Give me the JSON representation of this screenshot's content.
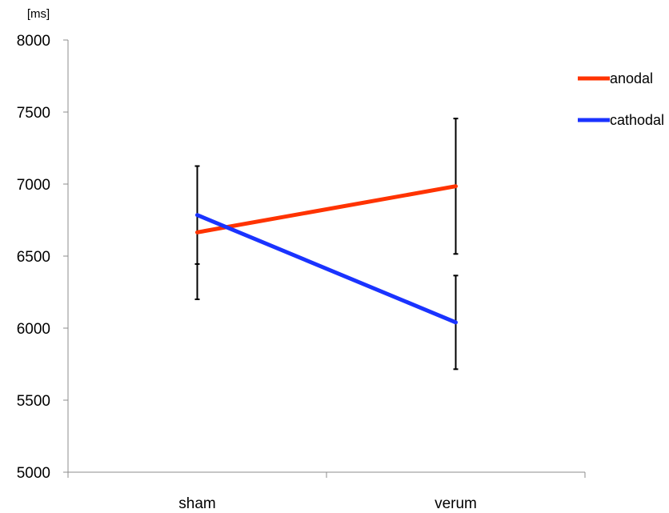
{
  "chart_data": {
    "type": "line",
    "title": "",
    "ylabel": "[ms]",
    "xlabel": "",
    "categories": [
      "sham",
      "verum"
    ],
    "ylim": [
      5000,
      8000
    ],
    "yticks": [
      5000,
      5500,
      6000,
      6500,
      7000,
      7500,
      8000
    ],
    "grid": false,
    "legend_position": "top-right",
    "series": [
      {
        "name": "anodal",
        "color": "#ff3300",
        "values": [
          6665,
          6985
        ],
        "error_low": [
          6200,
          6515
        ],
        "error_high": [
          7125,
          7455
        ]
      },
      {
        "name": "cathodal",
        "color": "#1a33ff",
        "values": [
          6785,
          6040
        ],
        "error_low": [
          6445,
          5715
        ],
        "error_high": [
          7125,
          6365
        ]
      }
    ]
  }
}
